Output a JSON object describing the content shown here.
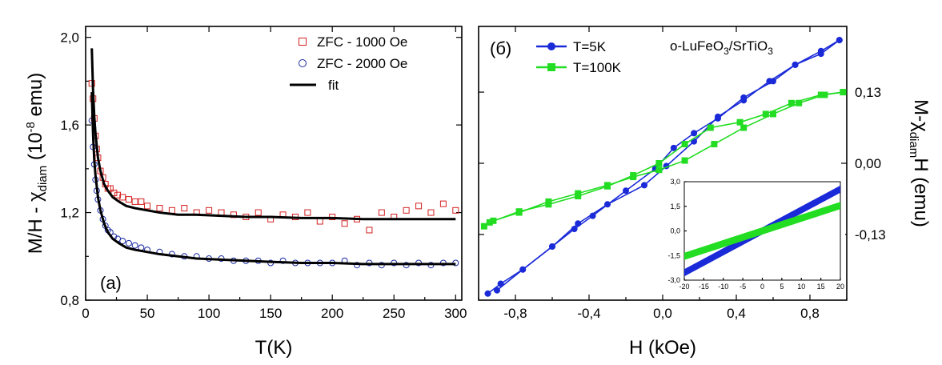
{
  "chart_data": [
    {
      "type": "scatter",
      "panel_label": "(a)",
      "xlabel": "T(K)",
      "ylabel": "M/H - χdiam (10⁻⁸ emu)",
      "ylabel_parts": {
        "main": "M/H - χ",
        "sub": "diam",
        "open": " (10",
        "sup": "-8",
        "close": " emu)"
      },
      "xlim": [
        0,
        305
      ],
      "ylim": [
        0.8,
        2.05
      ],
      "xticks": [
        "0",
        "50",
        "100",
        "150",
        "200",
        "250",
        "300"
      ],
      "yticks": [
        "0,8",
        "1,2",
        "1,6",
        "2,0"
      ],
      "legend_position": "top-right",
      "series": [
        {
          "name": "ZFC -  1000 Oe",
          "marker": "square",
          "color": "#d42020",
          "x": [
            5,
            6,
            7,
            8,
            9,
            10,
            12,
            14,
            16,
            18,
            20,
            23,
            26,
            30,
            35,
            40,
            45,
            50,
            60,
            70,
            80,
            90,
            100,
            110,
            120,
            130,
            140,
            150,
            160,
            170,
            180,
            190,
            200,
            210,
            220,
            230,
            240,
            250,
            260,
            270,
            280,
            290,
            300
          ],
          "y": [
            1.79,
            1.72,
            1.63,
            1.55,
            1.49,
            1.45,
            1.39,
            1.36,
            1.33,
            1.31,
            1.31,
            1.29,
            1.28,
            1.27,
            1.26,
            1.25,
            1.25,
            1.23,
            1.22,
            1.21,
            1.22,
            1.2,
            1.21,
            1.2,
            1.19,
            1.18,
            1.2,
            1.17,
            1.19,
            1.18,
            1.2,
            1.16,
            1.18,
            1.15,
            1.17,
            1.12,
            1.2,
            1.18,
            1.21,
            1.23,
            1.2,
            1.24,
            1.21
          ]
        },
        {
          "name": "ZFC -  2000 Oe",
          "marker": "circle",
          "color": "#1a2aa0",
          "x": [
            5,
            6,
            7,
            8,
            9,
            10,
            12,
            14,
            16,
            18,
            20,
            23,
            26,
            30,
            35,
            40,
            45,
            50,
            60,
            70,
            80,
            90,
            100,
            110,
            120,
            130,
            140,
            150,
            160,
            170,
            180,
            190,
            200,
            210,
            220,
            230,
            240,
            250,
            260,
            270,
            280,
            290,
            300
          ],
          "y": [
            1.62,
            1.5,
            1.42,
            1.35,
            1.3,
            1.26,
            1.21,
            1.17,
            1.14,
            1.12,
            1.11,
            1.09,
            1.08,
            1.07,
            1.06,
            1.05,
            1.04,
            1.03,
            1.02,
            1.01,
            1.0,
            1.0,
            0.99,
            0.99,
            0.98,
            0.98,
            0.98,
            0.97,
            0.98,
            0.97,
            0.97,
            0.97,
            0.97,
            0.98,
            0.96,
            0.97,
            0.96,
            0.97,
            0.96,
            0.97,
            0.96,
            0.97,
            0.97
          ]
        },
        {
          "name": "fit",
          "style": "line",
          "color": "#000000",
          "x": [
            5,
            6,
            7,
            8,
            10,
            12,
            15,
            18,
            22,
            27,
            33,
            40,
            50,
            60,
            75,
            90,
            110,
            130,
            150,
            175,
            200,
            225,
            250,
            275,
            300
          ],
          "y": [
            1.95,
            1.76,
            1.64,
            1.56,
            1.45,
            1.39,
            1.33,
            1.3,
            1.27,
            1.25,
            1.23,
            1.22,
            1.21,
            1.2,
            1.19,
            1.19,
            1.185,
            1.18,
            1.18,
            1.175,
            1.175,
            1.17,
            1.17,
            1.17,
            1.17
          ]
        },
        {
          "name": "",
          "style": "line",
          "color": "#000000",
          "x": [
            5,
            6,
            7,
            8,
            10,
            12,
            15,
            18,
            22,
            27,
            33,
            40,
            50,
            60,
            75,
            90,
            110,
            130,
            150,
            175,
            200,
            225,
            250,
            275,
            300
          ],
          "y": [
            1.75,
            1.56,
            1.44,
            1.37,
            1.27,
            1.21,
            1.15,
            1.11,
            1.08,
            1.06,
            1.04,
            1.03,
            1.02,
            1.01,
            1.0,
            0.99,
            0.985,
            0.98,
            0.975,
            0.97,
            0.97,
            0.965,
            0.965,
            0.965,
            0.965
          ]
        }
      ]
    },
    {
      "type": "line",
      "panel_label": "(б)",
      "annotation": "o-LuFeO3/SrTiO3",
      "annotation_parts": {
        "a": "o-LuFeO",
        "s1": "3",
        "b": "/SrTiO",
        "s2": "3"
      },
      "xlabel": "H (kOe)",
      "ylabel": "M-χdiamH (emu)",
      "ylabel_parts": {
        "main": "M-χ",
        "sub": "diam",
        "tail": "H (emu)"
      },
      "xlim": [
        -1.0,
        1.0
      ],
      "ylim": [
        -0.25,
        0.25
      ],
      "xticks": [
        "-0,8",
        "-0,4",
        "0,0",
        "0,4",
        "0,8"
      ],
      "yticks": [
        "-0,13",
        "0,00",
        "0,13"
      ],
      "legend_position": "top-left",
      "series": [
        {
          "name": "T=5K",
          "marker": "circle",
          "color": "#1a2ad8",
          "branch_up": {
            "x": [
              -0.95,
              -0.88,
              -0.76,
              -0.6,
              -0.48,
              -0.38,
              -0.2,
              -0.04,
              0.06,
              0.17,
              0.3,
              0.44,
              0.6,
              0.72,
              0.86,
              0.96
            ],
            "y": [
              -0.238,
              -0.22,
              -0.194,
              -0.152,
              -0.12,
              -0.096,
              -0.05,
              -0.01,
              0.028,
              0.055,
              0.082,
              0.12,
              0.15,
              0.18,
              0.2,
              0.225
            ]
          },
          "branch_down": {
            "x": [
              0.96,
              0.86,
              0.72,
              0.58,
              0.44,
              0.3,
              0.17,
              0.02,
              -0.1,
              -0.3,
              -0.46,
              -0.6,
              -0.76,
              -0.9
            ],
            "y": [
              0.225,
              0.205,
              0.18,
              0.15,
              0.115,
              0.085,
              0.04,
              -0.005,
              -0.04,
              -0.075,
              -0.11,
              -0.152,
              -0.194,
              -0.232
            ]
          }
        },
        {
          "name": "T=100K",
          "marker": "square",
          "color": "#22dd22",
          "branch_up": {
            "x": [
              -0.97,
              -0.92,
              -0.78,
              -0.62,
              -0.46,
              -0.3,
              -0.16,
              -0.02,
              0.12,
              0.28,
              0.44,
              0.6,
              0.74,
              0.88,
              0.98
            ],
            "y": [
              -0.115,
              -0.105,
              -0.09,
              -0.07,
              -0.055,
              -0.04,
              -0.025,
              -0.012,
              0.005,
              0.035,
              0.065,
              0.09,
              0.11,
              0.125,
              0.13
            ]
          },
          "branch_down": {
            "x": [
              0.98,
              0.86,
              0.7,
              0.56,
              0.42,
              0.26,
              0.12,
              -0.02,
              -0.16,
              -0.3,
              -0.46,
              -0.62,
              -0.78,
              -0.94
            ],
            "y": [
              0.13,
              0.125,
              0.11,
              0.09,
              0.075,
              0.065,
              0.035,
              0.0,
              -0.022,
              -0.042,
              -0.06,
              -0.075,
              -0.088,
              -0.108
            ]
          }
        }
      ],
      "inset": {
        "xlim": [
          -20,
          20
        ],
        "ylim": [
          -3.0,
          3.0
        ],
        "xticks": [
          "-20",
          "-15",
          "-10",
          "-5",
          "0",
          "5",
          "10",
          "15",
          "20"
        ],
        "yticks": [
          "-3,0",
          "-1,5",
          "0,0",
          "1,5",
          "3,0"
        ],
        "series": [
          {
            "name": "T=5K",
            "color": "#1a2ad8",
            "x": [
              -20,
              20
            ],
            "y": [
              -2.55,
              2.55
            ],
            "band": 0.22
          },
          {
            "name": "T=100K",
            "color": "#22dd22",
            "x": [
              -20,
              20
            ],
            "y": [
              -1.55,
              1.55
            ],
            "band": 0.22
          }
        ]
      }
    }
  ]
}
